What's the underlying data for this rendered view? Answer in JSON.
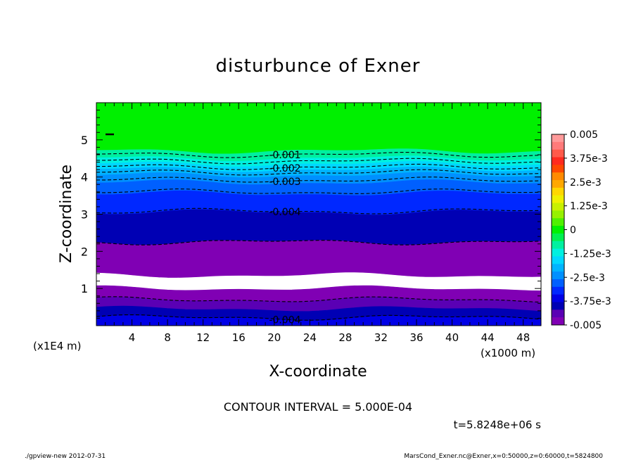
{
  "chart_data": {
    "type": "contour",
    "title": "disturbunce of Exner",
    "xlabel": "X-coordinate",
    "ylabel": "Z-coordinate",
    "x_unit": "(x1000 m)",
    "y_unit": "(x1E4 m)",
    "xlim": [
      0,
      50
    ],
    "ylim": [
      0,
      6
    ],
    "x_ticks": [
      "4",
      "8",
      "12",
      "16",
      "20",
      "24",
      "28",
      "32",
      "36",
      "40",
      "44",
      "48"
    ],
    "y_ticks": [
      "1",
      "2",
      "3",
      "4",
      "5"
    ],
    "contour_interval_label": "CONTOUR INTERVAL = 5.000E-04",
    "time_label": "t=5.8248e+06 s",
    "color_scale": {
      "min": -0.005,
      "max": 0.005,
      "step": 0.00025,
      "labels": [
        "0.005",
        "3.75e-3",
        "2.5e-3",
        "1.25e-3",
        "0",
        "-1.25e-3",
        "-2.5e-3",
        "-3.75e-3",
        "-0.005"
      ],
      "colors": [
        "#ff9a9a",
        "#ff7a7a",
        "#ff5a4a",
        "#ff2a1e",
        "#ff4800",
        "#ff8a00",
        "#ffa800",
        "#ffd700",
        "#f0f000",
        "#c8f000",
        "#96f000",
        "#50f000",
        "#00f000",
        "#00f050",
        "#00f0a0",
        "#00f0e0",
        "#00d8ff",
        "#00b4ff",
        "#0090ff",
        "#0060ff",
        "#0028ff",
        "#0000e6",
        "#0000b4",
        "#5a00b4",
        "#8000b4"
      ]
    },
    "bands": [
      {
        "z": [
          4.7,
          6.0
        ],
        "value": 0.0,
        "color": "#00f000"
      },
      {
        "z": [
          4.5,
          4.7
        ],
        "value": -0.00075,
        "color": "#00f0a0"
      },
      {
        "z": [
          4.35,
          4.5
        ],
        "value": -0.00125,
        "color": "#00f0e0"
      },
      {
        "z": [
          4.2,
          4.35
        ],
        "value": -0.00175,
        "color": "#00d8ff"
      },
      {
        "z": [
          4.05,
          4.2
        ],
        "value": -0.00225,
        "color": "#00b4ff"
      },
      {
        "z": [
          3.85,
          4.05
        ],
        "value": -0.00275,
        "color": "#0090ff"
      },
      {
        "z": [
          3.55,
          3.85
        ],
        "value": -0.00325,
        "color": "#0060ff"
      },
      {
        "z": [
          3.05,
          3.55
        ],
        "value": -0.00375,
        "color": "#0028ff"
      },
      {
        "z": [
          2.25,
          3.05
        ],
        "value": -0.00425,
        "color": "#0000b4"
      },
      {
        "z": [
          1.35,
          2.25
        ],
        "value": -0.00475,
        "color": "#8000b4"
      },
      {
        "z": [
          1.0,
          1.35
        ],
        "value": -0.00525,
        "color": "#ffffff"
      },
      {
        "z": [
          0.7,
          1.0
        ],
        "value": -0.00475,
        "color": "#8000b4"
      },
      {
        "z": [
          0.45,
          0.7
        ],
        "value": -0.00425,
        "color": "#5a00b4"
      },
      {
        "z": [
          0.2,
          0.45
        ],
        "value": -0.00375,
        "color": "#0000b4"
      },
      {
        "z": [
          0.0,
          0.2
        ],
        "value": -0.00325,
        "color": "#0000e6"
      }
    ],
    "contours": [
      {
        "value": -0.001,
        "z": 4.6,
        "label": "-0.001"
      },
      {
        "value": -0.0015,
        "z": 4.43,
        "label": ""
      },
      {
        "value": -0.002,
        "z": 4.27,
        "label": "-0.002"
      },
      {
        "value": -0.0025,
        "z": 4.12,
        "label": ""
      },
      {
        "value": -0.003,
        "z": 3.92,
        "label": "-0.003"
      },
      {
        "value": -0.0035,
        "z": 3.6,
        "label": ""
      },
      {
        "value": -0.004,
        "z": 3.08,
        "label": "-0.004"
      },
      {
        "value": -0.0045,
        "z": 2.25,
        "label": ""
      },
      {
        "value": -0.0045,
        "z": 0.7,
        "label": ""
      },
      {
        "value": -0.004,
        "z": 0.22,
        "label": "-0.004"
      }
    ]
  },
  "footer": {
    "left": "./gpview-new   2012-07-31",
    "right": "MarsCond_Exner.nc@Exner,x=0:50000,z=0:60000,t=5824800"
  }
}
